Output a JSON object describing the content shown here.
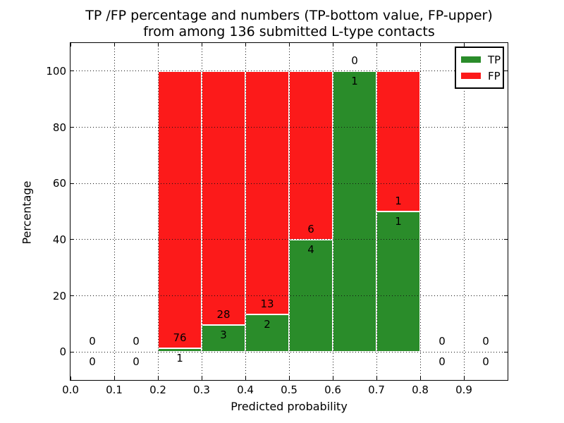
{
  "chart_data": {
    "type": "bar",
    "stacking": "percentage",
    "title_line1": "TP /FP percentage and numbers (TP-bottom value, FP-upper)",
    "title_line2": "from among 136 submitted L-type contacts",
    "xlabel": "Predicted probability",
    "ylabel": "Percentage",
    "xlim": [
      0.0,
      1.0
    ],
    "ylim": [
      -10,
      110
    ],
    "x_ticks": [
      {
        "value": 0.0,
        "label": "0.0"
      },
      {
        "value": 0.1,
        "label": "0.1"
      },
      {
        "value": 0.2,
        "label": "0.2"
      },
      {
        "value": 0.3,
        "label": "0.3"
      },
      {
        "value": 0.4,
        "label": "0.4"
      },
      {
        "value": 0.5,
        "label": "0.5"
      },
      {
        "value": 0.6,
        "label": "0.6"
      },
      {
        "value": 0.7,
        "label": "0.7"
      },
      {
        "value": 0.8,
        "label": "0.8"
      },
      {
        "value": 0.9,
        "label": "0.9"
      }
    ],
    "y_ticks": [
      {
        "value": 0,
        "label": "0"
      },
      {
        "value": 20,
        "label": "20"
      },
      {
        "value": 40,
        "label": "40"
      },
      {
        "value": 60,
        "label": "60"
      },
      {
        "value": 80,
        "label": "80"
      },
      {
        "value": 100,
        "label": "100"
      }
    ],
    "grid": "dotted, drawn above bars",
    "legend_position": "upper-right",
    "legend": [
      {
        "name": "TP",
        "color": "#2a8c2a"
      },
      {
        "name": "FP",
        "color": "#fc1a1a"
      }
    ],
    "bins": [
      {
        "range": [
          0.0,
          0.1
        ],
        "tp": 0,
        "fp": 0
      },
      {
        "range": [
          0.1,
          0.2
        ],
        "tp": 0,
        "fp": 0
      },
      {
        "range": [
          0.2,
          0.3
        ],
        "tp": 1,
        "fp": 76
      },
      {
        "range": [
          0.3,
          0.4
        ],
        "tp": 3,
        "fp": 28
      },
      {
        "range": [
          0.4,
          0.5
        ],
        "tp": 2,
        "fp": 13
      },
      {
        "range": [
          0.5,
          0.6
        ],
        "tp": 4,
        "fp": 6
      },
      {
        "range": [
          0.6,
          0.7
        ],
        "tp": 1,
        "fp": 0
      },
      {
        "range": [
          0.7,
          0.8
        ],
        "tp": 1,
        "fp": 1
      },
      {
        "range": [
          0.8,
          0.9
        ],
        "tp": 0,
        "fp": 0
      },
      {
        "range": [
          0.9,
          1.0
        ],
        "tp": 0,
        "fp": 0
      }
    ],
    "total_contacts": "136"
  }
}
